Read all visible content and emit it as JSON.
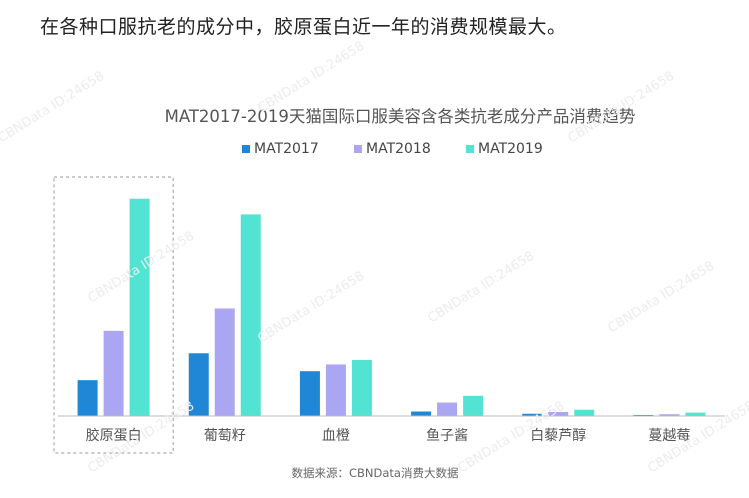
{
  "headline": "在各种口服抗老的成分中，胶原蛋白近一年的消费规模最大。",
  "watermark": "CBNData ID:24658",
  "chart_data": {
    "type": "bar",
    "title": "MAT2017-2019天猫国际口服美容含各类抗老成分产品消费趋势",
    "categories": [
      "胶原蛋白",
      "葡萄籽",
      "血橙",
      "鱼子酱",
      "白藜芦醇",
      "蔓越莓"
    ],
    "series": [
      {
        "name": "MAT2017",
        "color": "#1f87d6",
        "values": [
          16,
          28,
          20,
          2,
          1,
          0.2
        ]
      },
      {
        "name": "MAT2018",
        "color": "#aaa6f2",
        "values": [
          38,
          48,
          23,
          6,
          1.8,
          0.8
        ]
      },
      {
        "name": "MAT2019",
        "color": "#53e3d2",
        "values": [
          97,
          90,
          25,
          9,
          2.8,
          1.5
        ]
      }
    ],
    "ylim": [
      0,
      100
    ],
    "highlight_category": "胶原蛋白",
    "legend_position": "top-center",
    "source": "数据来源：CBNData消费大数据"
  }
}
